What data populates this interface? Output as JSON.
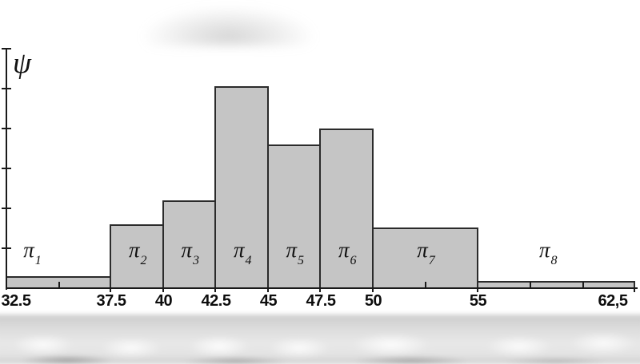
{
  "figure": {
    "ylabel": "ψ"
  },
  "chart_data": {
    "type": "bar",
    "subtype": "histogram",
    "title": "",
    "xlabel": "",
    "ylabel": "ψ",
    "bin_edges": [
      32.5,
      37.5,
      40,
      42.5,
      45,
      47.5,
      50,
      55,
      62.5
    ],
    "x_tick_labels": [
      "32.5",
      "37.5",
      "40",
      "42.5",
      "45",
      "47.5",
      "50",
      "55",
      "62,5"
    ],
    "x_minor_ticks": [
      35,
      52.5,
      57.5,
      60
    ],
    "y_axis": {
      "label": "ψ",
      "ticks_count": 6,
      "tick_values_labeled": false
    },
    "grid": false,
    "legend": false,
    "bars": [
      {
        "name": "π1",
        "symbol": "π",
        "sub": "1",
        "from": 32.5,
        "to": 37.5,
        "height": 0.3
      },
      {
        "name": "π2",
        "symbol": "π",
        "sub": "2",
        "from": 37.5,
        "to": 40.0,
        "height": 1.6
      },
      {
        "name": "π3",
        "symbol": "π",
        "sub": "3",
        "from": 40.0,
        "to": 42.5,
        "height": 2.2
      },
      {
        "name": "π4",
        "symbol": "π",
        "sub": "4",
        "from": 42.5,
        "to": 45.0,
        "height": 5.05
      },
      {
        "name": "π5",
        "symbol": "π",
        "sub": "5",
        "from": 45.0,
        "to": 47.5,
        "height": 3.6
      },
      {
        "name": "π6",
        "symbol": "π",
        "sub": "6",
        "from": 47.5,
        "to": 50.0,
        "height": 4.0
      },
      {
        "name": "π7",
        "symbol": "π",
        "sub": "7",
        "from": 50.0,
        "to": 55.0,
        "height": 1.52
      },
      {
        "name": "π8",
        "symbol": "π",
        "sub": "8",
        "from": 55.0,
        "to": 62.5,
        "height": 0.18
      }
    ],
    "heights_unit": "y-axis tick intervals (axis unlabeled)",
    "colors": {
      "bar_fill": "#c5c5c5",
      "bar_border": "#2b2b2b",
      "axis": "#1a1a1a",
      "text": "#0d0d0d"
    }
  }
}
